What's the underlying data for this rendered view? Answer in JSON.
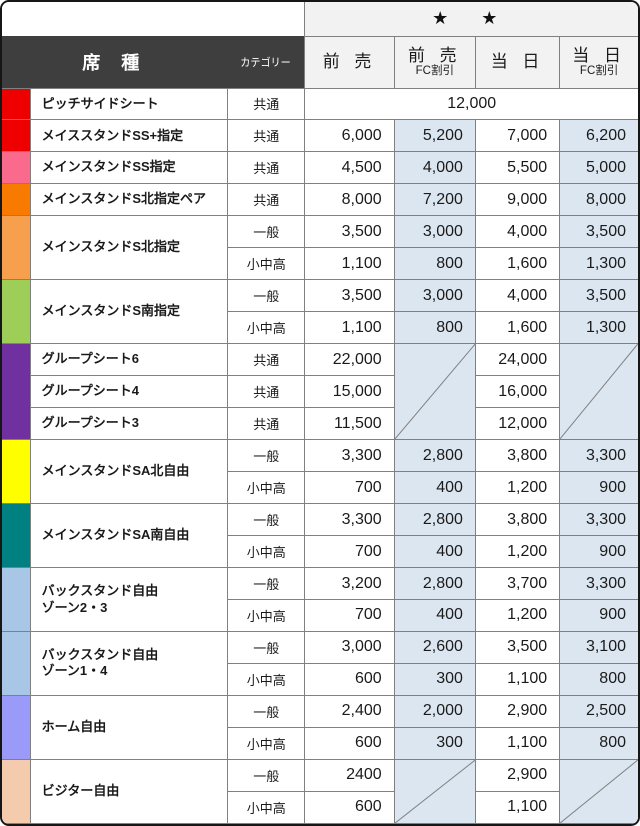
{
  "header": {
    "stars": "★ ★",
    "seat_type_label": "席 種",
    "category_label": "カテゴリー",
    "price_columns": [
      {
        "line1": "前 売",
        "line2": ""
      },
      {
        "line1": "前 売",
        "line2": "FC割引"
      },
      {
        "line1": "当 日",
        "line2": ""
      },
      {
        "line1": "当 日",
        "line2": "FC割引"
      }
    ]
  },
  "colors": {
    "outer_border": "#161616",
    "grid_line": "#808080",
    "dark_header_bg": "#3e3e3e",
    "light_header_bg": "#f2f2f2",
    "fc_column_bg": "#dce6f1"
  },
  "table": {
    "groups": [
      {
        "label": [
          "ピッチサイドシート"
        ],
        "color": "#ee0000",
        "rows": [
          {
            "cat": "共通",
            "merged": "12,000"
          }
        ]
      },
      {
        "label": [
          "メイススタンドSS+指定"
        ],
        "color": "#ee0000",
        "rows": [
          {
            "cat": "共通",
            "prices": [
              "6,000",
              "5,200",
              "7,000",
              "6,200"
            ]
          }
        ]
      },
      {
        "label": [
          "メインスタンドSS指定"
        ],
        "color": "#fa6a8c",
        "rows": [
          {
            "cat": "共通",
            "prices": [
              "4,500",
              "4,000",
              "5,500",
              "5,000"
            ]
          }
        ]
      },
      {
        "label": [
          "メインスタンドS北指定ペア"
        ],
        "color": "#f87b00",
        "rows": [
          {
            "cat": "共通",
            "prices": [
              "8,000",
              "7,200",
              "9,000",
              "8,000"
            ]
          }
        ]
      },
      {
        "label": [
          "メインスタンドS北指定"
        ],
        "color": "#f6a04d",
        "rows": [
          {
            "cat": "一般",
            "prices": [
              "3,500",
              "3,000",
              "4,000",
              "3,500"
            ]
          },
          {
            "cat": "小中高",
            "prices": [
              "1,100",
              "800",
              "1,600",
              "1,300"
            ]
          }
        ]
      },
      {
        "label": [
          "メインスタンドS南指定"
        ],
        "color": "#9dce57",
        "rows": [
          {
            "cat": "一般",
            "prices": [
              "3,500",
              "3,000",
              "4,000",
              "3,500"
            ]
          },
          {
            "cat": "小中高",
            "prices": [
              "1,100",
              "800",
              "1,600",
              "1,300"
            ]
          }
        ]
      },
      {
        "multi": true,
        "color": "#7030a0",
        "fc_diagonal": true,
        "rows": [
          {
            "name": "グループシート6",
            "cat": "共通",
            "maeuri": "22,000",
            "tojitsu": "24,000"
          },
          {
            "name": "グループシート4",
            "cat": "共通",
            "maeuri": "15,000",
            "tojitsu": "16,000"
          },
          {
            "name": "グループシート3",
            "cat": "共通",
            "maeuri": "11,500",
            "tojitsu": "12,000"
          }
        ]
      },
      {
        "label": [
          "メインスタンドSA北自由"
        ],
        "color": "#ffff00",
        "rows": [
          {
            "cat": "一般",
            "prices": [
              "3,300",
              "2,800",
              "3,800",
              "3,300"
            ]
          },
          {
            "cat": "小中高",
            "prices": [
              "700",
              "400",
              "1,200",
              "900"
            ]
          }
        ]
      },
      {
        "label": [
          "メインスタンドSA南自由"
        ],
        "color": "#008080",
        "rows": [
          {
            "cat": "一般",
            "prices": [
              "3,300",
              "2,800",
              "3,800",
              "3,300"
            ]
          },
          {
            "cat": "小中高",
            "prices": [
              "700",
              "400",
              "1,200",
              "900"
            ]
          }
        ]
      },
      {
        "label": [
          "バックスタンド自由",
          "ゾーン2・3"
        ],
        "color": "#a8c7e7",
        "rows": [
          {
            "cat": "一般",
            "prices": [
              "3,200",
              "2,800",
              "3,700",
              "3,300"
            ]
          },
          {
            "cat": "小中高",
            "prices": [
              "700",
              "400",
              "1,200",
              "900"
            ]
          }
        ]
      },
      {
        "label": [
          "バックスタンド自由",
          "ゾーン1・4"
        ],
        "color": "#a8c7e7",
        "rows": [
          {
            "cat": "一般",
            "prices": [
              "3,000",
              "2,600",
              "3,500",
              "3,100"
            ]
          },
          {
            "cat": "小中高",
            "prices": [
              "600",
              "300",
              "1,100",
              "800"
            ]
          }
        ]
      },
      {
        "label": [
          "ホーム自由"
        ],
        "color": "#9a9af8",
        "rows": [
          {
            "cat": "一般",
            "prices": [
              "2,400",
              "2,000",
              "2,900",
              "2,500"
            ]
          },
          {
            "cat": "小中高",
            "prices": [
              "600",
              "300",
              "1,100",
              "800"
            ]
          }
        ]
      },
      {
        "label": [
          "ビジター自由"
        ],
        "color": "#f5cbad",
        "fc_diagonal": true,
        "rows": [
          {
            "cat": "一般",
            "maeuri": "2400",
            "tojitsu": "2,900"
          },
          {
            "cat": "小中高",
            "maeuri": "600",
            "tojitsu": "1,100"
          }
        ]
      }
    ]
  }
}
